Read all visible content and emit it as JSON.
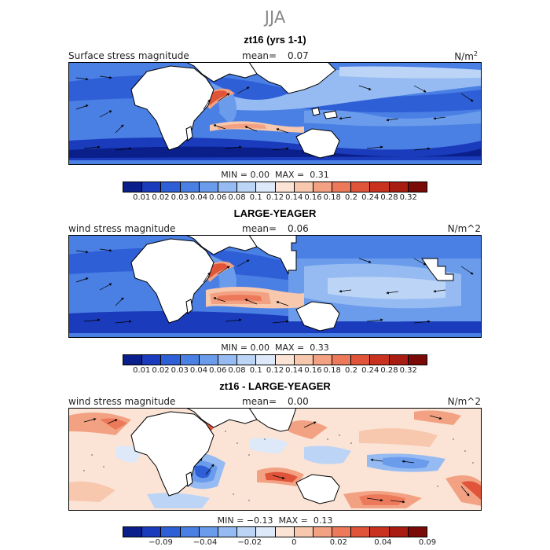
{
  "figure": {
    "season": "JJA"
  },
  "panels": [
    {
      "title": "zt16 (yrs 1-1)",
      "left_label": "Surface stress magnitude",
      "mean_label": "mean=",
      "mean_value": "0.07",
      "units": "N/m",
      "units_sup": "2",
      "min_label": "MIN =",
      "min_value": "0.00",
      "max_label": "MAX =",
      "max_value": "0.31",
      "colorbar": {
        "colors": [
          "#0a1f8a",
          "#1a3bbb",
          "#2f5fd6",
          "#4a7fe4",
          "#6b9cec",
          "#95bbf2",
          "#bcd4f6",
          "#dde8f8",
          "#fbe4d6",
          "#f7c7ae",
          "#f2a283",
          "#ec7a5a",
          "#e0543a",
          "#c8321f",
          "#a81c12",
          "#7a0a08"
        ],
        "tick_labels": [
          "0.01",
          "0.02",
          "0.03",
          "0.04",
          "0.06",
          "0.08",
          "0.1",
          "0.12",
          "0.14",
          "0.16",
          "0.18",
          "0.2",
          "0.24",
          "0.28",
          "0.32"
        ]
      }
    },
    {
      "title": "LARGE-YEAGER",
      "left_label": "wind stress magnitude",
      "mean_label": "mean=",
      "mean_value": "0.06",
      "units": "N/m^2",
      "units_sup": "",
      "min_label": "MIN =",
      "min_value": "0.00",
      "max_label": "MAX =",
      "max_value": "0.33",
      "colorbar": {
        "colors": [
          "#0a1f8a",
          "#1a3bbb",
          "#2f5fd6",
          "#4a7fe4",
          "#6b9cec",
          "#95bbf2",
          "#bcd4f6",
          "#dde8f8",
          "#fbe4d6",
          "#f7c7ae",
          "#f2a283",
          "#ec7a5a",
          "#e0543a",
          "#c8321f",
          "#a81c12",
          "#7a0a08"
        ],
        "tick_labels": [
          "0.01",
          "0.02",
          "0.03",
          "0.04",
          "0.06",
          "0.08",
          "0.1",
          "0.12",
          "0.14",
          "0.16",
          "0.18",
          "0.2",
          "0.24",
          "0.28",
          "0.32"
        ]
      }
    },
    {
      "title": "zt16 - LARGE-YEAGER",
      "left_label": "wind stress magnitude",
      "mean_label": "mean=",
      "mean_value": "0.00",
      "units": "N/m^2",
      "units_sup": "",
      "min_label": "MIN =",
      "min_value": "−0.13",
      "max_label": "MAX =",
      "max_value": "0.13",
      "colorbar": {
        "colors": [
          "#0a1f8a",
          "#1a3bbb",
          "#2f5fd6",
          "#4a7fe4",
          "#6b9cec",
          "#95bbf2",
          "#bcd4f6",
          "#dde8f8",
          "#fbe4d6",
          "#f7c7ae",
          "#f2a283",
          "#ec7a5a",
          "#e0543a",
          "#c8321f",
          "#a81c12",
          "#7a0a08"
        ],
        "tick_labels": [
          "−0.09",
          "−0.04",
          "−0.02",
          "0",
          "0.02",
          "0.04",
          "0.09"
        ]
      }
    }
  ]
}
